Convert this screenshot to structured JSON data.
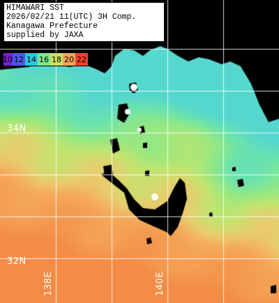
{
  "info": {
    "line1": "HIMAWARI SST",
    "line2": "2026/02/21 11(UTC) 3H Comp.",
    "line3": "Kanagawa Prefecture",
    "line4": "supplied by JAXA"
  },
  "legend": {
    "items": [
      {
        "label": "10",
        "color": "#7a1fd0"
      },
      {
        "label": "12",
        "color": "#4a57e8"
      },
      {
        "label": "14",
        "color": "#2fc6e0"
      },
      {
        "label": "16",
        "color": "#7ce88a"
      },
      {
        "label": "18",
        "color": "#c8e060"
      },
      {
        "label": "20",
        "color": "#f5a552"
      },
      {
        "label": "22",
        "color": "#f0402a"
      }
    ]
  },
  "grid": {
    "lat_labels": [
      "34N",
      "32N"
    ],
    "lon_labels": [
      "138E",
      "140E"
    ]
  }
}
